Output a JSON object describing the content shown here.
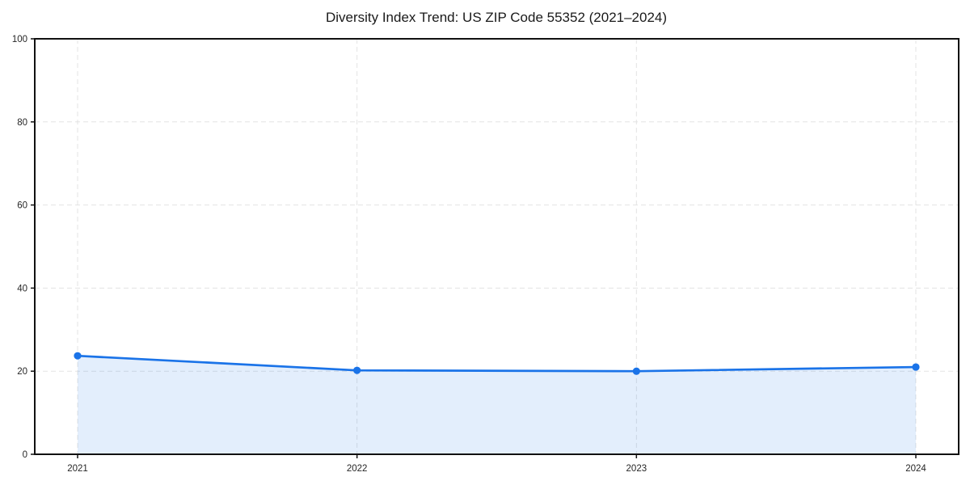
{
  "chart_data": {
    "type": "line",
    "title": "Diversity Index Trend: US ZIP Code 55352 (2021–2024)",
    "x": [
      2021,
      2022,
      2023,
      2024
    ],
    "categories": [
      "2021",
      "2022",
      "2023",
      "2024"
    ],
    "series": [
      {
        "name": "Diversity Index",
        "values": [
          23.7,
          20.2,
          20.0,
          21.0
        ]
      }
    ],
    "xlabel": "",
    "ylabel": "",
    "ylim": [
      0,
      100
    ],
    "yticks": [
      0,
      20,
      40,
      60,
      80,
      100
    ],
    "xticks": [
      "2021",
      "2022",
      "2023",
      "2024"
    ],
    "grid": true,
    "grid_style": "dashed",
    "legend": "none",
    "area_fill": true,
    "marker": "circle",
    "colors": {
      "line": "#1a73e8",
      "marker": "#1a73e8",
      "fill": "rgba(26,115,232,0.12)",
      "grid": "#e3e3e3",
      "spine": "#111111",
      "text": "#262626",
      "background": "#ffffff"
    }
  }
}
